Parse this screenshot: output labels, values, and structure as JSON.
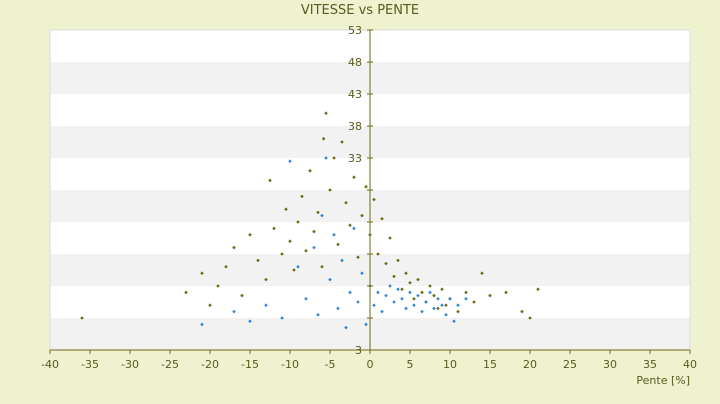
{
  "chart_data": {
    "type": "scatter",
    "title": "VITESSE vs PENTE",
    "xlabel": "Pente [%]",
    "ylabel": "",
    "xlim": [
      -40,
      40
    ],
    "ylim": [
      3,
      53
    ],
    "x_ticks": [
      -40,
      -35,
      -30,
      -25,
      -20,
      -15,
      -10,
      -5,
      0,
      5,
      10,
      15,
      20,
      25,
      30,
      35,
      40
    ],
    "y_ticks": [
      3,
      8,
      13,
      18,
      23,
      28,
      33,
      38,
      43,
      48,
      53
    ],
    "y_tick_labels_shown": [
      "3",
      "",
      "",
      "",
      "",
      "",
      "33",
      "38",
      "43",
      "48",
      "53"
    ],
    "grid": "horizontal bands",
    "legend": "none",
    "colors": {
      "background": "#eef2cf",
      "plot_band_light": "#ffffff",
      "plot_band_dark": "#f2f2f2",
      "text": "#5a5a1e",
      "series_a": "#6b6b14",
      "series_b": "#2f87d6"
    },
    "series": [
      {
        "color": "#6b6b14",
        "marker": "diamond",
        "points": [
          [
            -36.0,
            8.0
          ],
          [
            -23.0,
            12.0
          ],
          [
            -21.0,
            15.0
          ],
          [
            -20.0,
            10.0
          ],
          [
            -19.0,
            13.0
          ],
          [
            -18.0,
            16.0
          ],
          [
            -17.0,
            19.0
          ],
          [
            -16.0,
            11.5
          ],
          [
            -15.0,
            21.0
          ],
          [
            -14.0,
            17.0
          ],
          [
            -13.0,
            14.0
          ],
          [
            -12.5,
            29.5
          ],
          [
            -12.0,
            22.0
          ],
          [
            -11.0,
            18.0
          ],
          [
            -10.5,
            25.0
          ],
          [
            -10.0,
            20.0
          ],
          [
            -9.5,
            15.5
          ],
          [
            -9.0,
            23.0
          ],
          [
            -8.5,
            27.0
          ],
          [
            -8.0,
            18.5
          ],
          [
            -7.5,
            31.0
          ],
          [
            -7.0,
            21.5
          ],
          [
            -6.5,
            24.5
          ],
          [
            -6.0,
            16.0
          ],
          [
            -5.8,
            36.0
          ],
          [
            -5.5,
            40.0
          ],
          [
            -5.0,
            28.0
          ],
          [
            -4.5,
            33.0
          ],
          [
            -4.0,
            19.5
          ],
          [
            -3.5,
            35.5
          ],
          [
            -3.0,
            26.0
          ],
          [
            -2.5,
            22.5
          ],
          [
            -2.0,
            30.0
          ],
          [
            -1.5,
            17.5
          ],
          [
            -1.0,
            24.0
          ],
          [
            -0.5,
            28.5
          ],
          [
            0.0,
            21.0
          ],
          [
            0.5,
            26.5
          ],
          [
            1.0,
            18.0
          ],
          [
            1.5,
            23.5
          ],
          [
            2.0,
            16.5
          ],
          [
            2.5,
            20.5
          ],
          [
            3.0,
            14.5
          ],
          [
            3.5,
            17.0
          ],
          [
            4.0,
            12.5
          ],
          [
            4.5,
            15.0
          ],
          [
            5.0,
            13.5
          ],
          [
            5.5,
            11.0
          ],
          [
            6.0,
            14.0
          ],
          [
            6.5,
            12.0
          ],
          [
            7.0,
            10.5
          ],
          [
            7.5,
            13.0
          ],
          [
            8.0,
            11.5
          ],
          [
            8.5,
            9.5
          ],
          [
            9.0,
            12.5
          ],
          [
            9.5,
            10.0
          ],
          [
            10.0,
            11.0
          ],
          [
            11.0,
            9.0
          ],
          [
            12.0,
            12.0
          ],
          [
            13.0,
            10.5
          ],
          [
            14.0,
            15.0
          ],
          [
            15.0,
            11.5
          ],
          [
            17.0,
            12.0
          ],
          [
            19.0,
            9.0
          ],
          [
            20.0,
            8.0
          ],
          [
            21.0,
            12.5
          ]
        ]
      },
      {
        "color": "#2f87d6",
        "marker": "diamond",
        "points": [
          [
            -21.0,
            7.0
          ],
          [
            -17.0,
            9.0
          ],
          [
            -15.0,
            7.5
          ],
          [
            -13.0,
            10.0
          ],
          [
            -11.0,
            8.0
          ],
          [
            -10.0,
            32.5
          ],
          [
            -9.0,
            16.0
          ],
          [
            -8.0,
            11.0
          ],
          [
            -7.0,
            19.0
          ],
          [
            -6.5,
            8.5
          ],
          [
            -6.0,
            24.0
          ],
          [
            -5.5,
            33.0
          ],
          [
            -5.0,
            14.0
          ],
          [
            -4.5,
            21.0
          ],
          [
            -4.0,
            9.5
          ],
          [
            -3.5,
            17.0
          ],
          [
            -3.0,
            6.5
          ],
          [
            -2.5,
            12.0
          ],
          [
            -2.0,
            22.0
          ],
          [
            -1.5,
            10.5
          ],
          [
            -1.0,
            15.0
          ],
          [
            -0.5,
            7.0
          ],
          [
            0.0,
            13.0
          ],
          [
            0.5,
            10.0
          ],
          [
            1.0,
            12.0
          ],
          [
            1.5,
            9.0
          ],
          [
            2.0,
            11.5
          ],
          [
            2.5,
            13.0
          ],
          [
            3.0,
            10.5
          ],
          [
            3.5,
            12.5
          ],
          [
            4.0,
            11.0
          ],
          [
            4.5,
            9.5
          ],
          [
            5.0,
            12.0
          ],
          [
            5.5,
            10.0
          ],
          [
            6.0,
            11.5
          ],
          [
            6.5,
            9.0
          ],
          [
            7.0,
            10.5
          ],
          [
            7.5,
            12.0
          ],
          [
            8.0,
            9.5
          ],
          [
            8.5,
            11.0
          ],
          [
            9.0,
            10.0
          ],
          [
            9.5,
            8.5
          ],
          [
            10.0,
            11.0
          ],
          [
            10.5,
            7.5
          ],
          [
            11.0,
            10.0
          ],
          [
            12.0,
            11.0
          ]
        ]
      }
    ]
  }
}
